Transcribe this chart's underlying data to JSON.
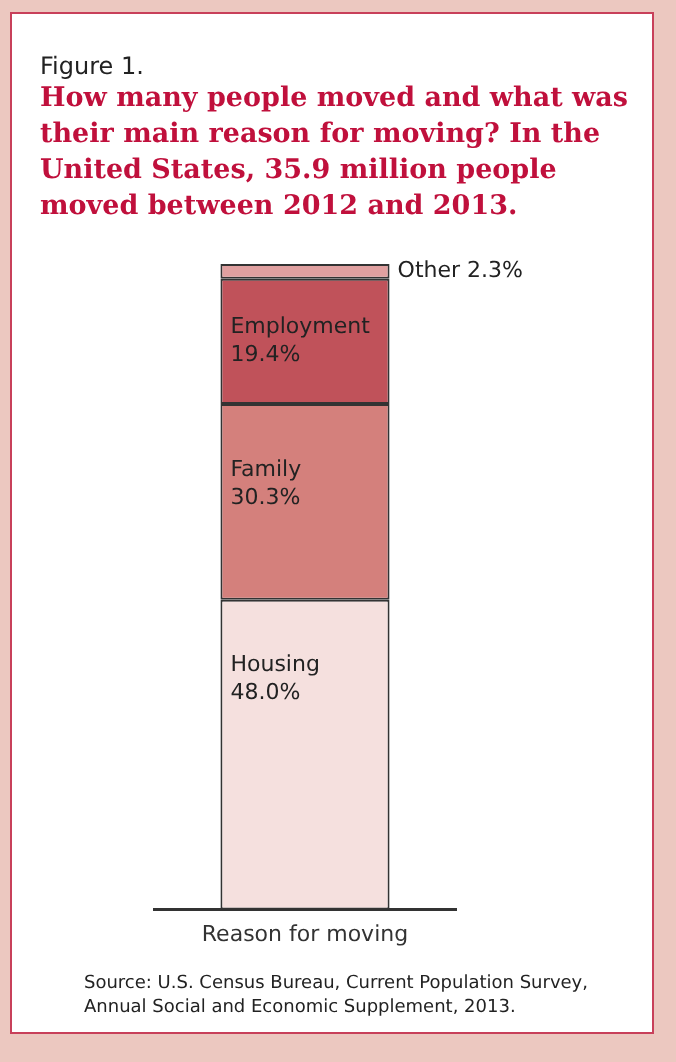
{
  "chart_data": {
    "type": "bar",
    "subtitle": "Figure 1.",
    "title": "How many people moved and what was their main reason for moving? In the United States, 35.9 million people moved between 2012 and 2013.",
    "categories": [
      "Reason for moving"
    ],
    "stacked": true,
    "grid": false,
    "legend": false,
    "series": [
      {
        "name": "Housing",
        "color": "#f5e0de",
        "values": [
          48.0
        ],
        "value_labels": [
          "48.0%"
        ]
      },
      {
        "name": "Family",
        "color": "#d4807c",
        "values": [
          30.3
        ],
        "value_labels": [
          "30.3%"
        ]
      },
      {
        "name": "Employment",
        "color": "#c0525a",
        "values": [
          19.4
        ],
        "value_labels": [
          "19.4%"
        ]
      },
      {
        "name": "Other",
        "color": "#e0a0a0",
        "values": [
          2.3
        ],
        "value_labels": [
          "2.3%"
        ]
      }
    ],
    "annotations": [
      "Source: U.S. Census Bureau, Current Population Survey, Annual Social and Economic Supplement, 2013."
    ]
  }
}
